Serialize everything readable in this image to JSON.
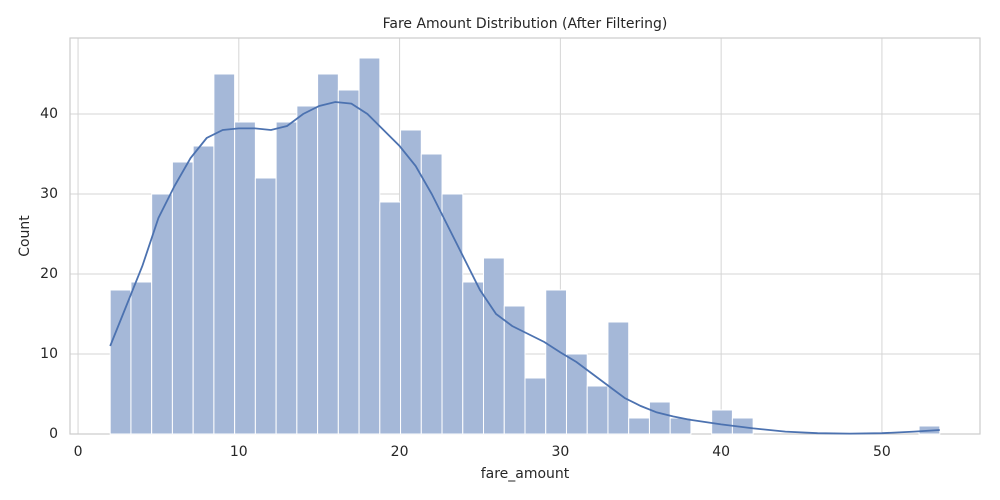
{
  "chart_data": {
    "type": "histogram",
    "title": "Fare Amount Distribution (After Filtering)",
    "xlabel": "fare_amount",
    "ylabel": "Count",
    "bins": [
      2.0,
      3.29,
      4.58,
      5.87,
      7.16,
      8.45,
      9.74,
      11.03,
      12.32,
      13.61,
      14.9,
      16.19,
      17.48,
      18.77,
      20.06,
      21.35,
      22.64,
      23.93,
      25.22,
      26.51,
      27.8,
      29.09,
      30.38,
      31.67,
      32.96,
      34.25,
      35.54,
      36.83,
      38.12,
      39.41,
      40.7,
      41.99,
      43.28,
      44.57,
      45.86,
      47.15,
      48.44,
      49.73,
      51.02,
      52.31,
      53.6
    ],
    "counts": [
      18,
      19,
      30,
      34,
      36,
      45,
      39,
      32,
      39,
      41,
      45,
      43,
      47,
      29,
      38,
      35,
      30,
      19,
      22,
      16,
      7,
      18,
      10,
      6,
      14,
      2,
      4,
      2,
      0,
      3,
      2,
      0,
      0,
      0,
      0,
      0,
      0,
      0,
      0,
      1
    ],
    "color": "#a5b8d8",
    "kde": {
      "color": "#4c72b0",
      "x": [
        2,
        3,
        4,
        5,
        6,
        7,
        8,
        9,
        10,
        11,
        12,
        13,
        14,
        15,
        16,
        17,
        18,
        19,
        20,
        21,
        22,
        23,
        24,
        25,
        26,
        27,
        28,
        29,
        30,
        31,
        32,
        33,
        34,
        35,
        36,
        37,
        38,
        40,
        42,
        44,
        46,
        48,
        50,
        52,
        53.6
      ],
      "y": [
        11,
        16,
        21,
        27,
        31,
        34.5,
        37,
        38,
        38.2,
        38.2,
        38,
        38.5,
        40,
        41,
        41.5,
        41.3,
        40,
        38,
        36,
        33.5,
        30,
        26,
        22,
        18,
        15,
        13.5,
        12.5,
        11.5,
        10.2,
        9,
        7.5,
        6,
        4.5,
        3.5,
        2.7,
        2.2,
        1.8,
        1.2,
        0.7,
        0.3,
        0.1,
        0.05,
        0.1,
        0.3,
        0.5
      ]
    },
    "xlim": [
      -0.5,
      56.1
    ],
    "ylim": [
      0,
      49.5
    ],
    "xticks": [
      0,
      10,
      20,
      30,
      40,
      50
    ],
    "yticks": [
      0,
      10,
      20,
      30,
      40
    ],
    "grid": true
  }
}
